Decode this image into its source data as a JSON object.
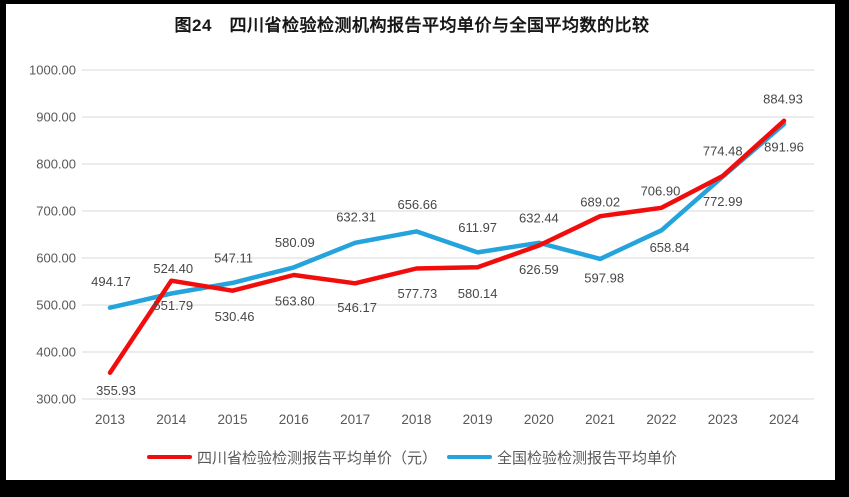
{
  "chart_data": {
    "type": "line",
    "title": "图24　四川省检验检测机构报告平均单价与全国平均数的比较",
    "categories": [
      "2013",
      "2014",
      "2015",
      "2016",
      "2017",
      "2018",
      "2019",
      "2020",
      "2021",
      "2022",
      "2023",
      "2024"
    ],
    "series": [
      {
        "key": "sichuan",
        "name": "四川省检验检测报告平均单价（元）",
        "color": "#f20d0d",
        "values": [
          355.93,
          551.79,
          530.46,
          563.8,
          546.17,
          577.73,
          580.14,
          626.59,
          689.02,
          706.9,
          774.48,
          891.96
        ]
      },
      {
        "key": "national",
        "name": "全国检验检测报告平均单价",
        "color": "#24a3dc",
        "values": [
          494.17,
          524.4,
          547.11,
          580.09,
          632.31,
          656.66,
          611.97,
          632.44,
          597.98,
          658.84,
          772.99,
          884.93
        ]
      }
    ],
    "xlabel": "",
    "ylabel": "",
    "ylim": [
      300,
      1000
    ],
    "ytick_step": 100,
    "ytick_labels": [
      "300.00",
      "400.00",
      "500.00",
      "600.00",
      "700.00",
      "800.00",
      "900.00",
      "1000.00"
    ],
    "value_label_decimals": 2,
    "grid": "horizontal",
    "legend_position": "bottom"
  },
  "colors": {
    "frame": "#000000",
    "canvas": "#ffffff",
    "gridline": "#d9d9d9",
    "axis_text": "#595959",
    "data_label_text": "#474747",
    "title_text": "#171717"
  }
}
